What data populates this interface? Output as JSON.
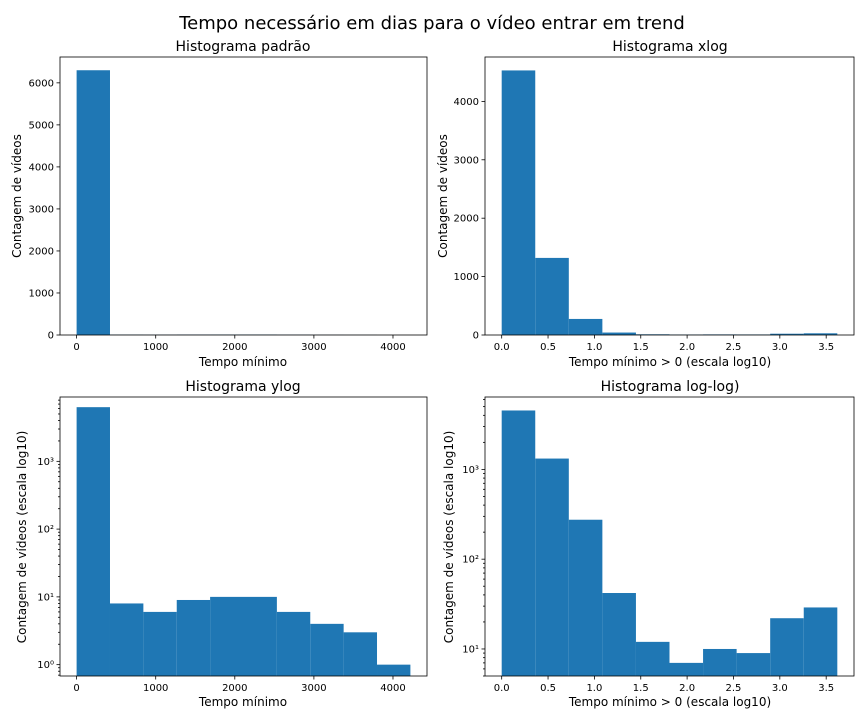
{
  "figure": {
    "title": "Tempo necessário em dias para o vídeo entrar em trend"
  },
  "chart_data": [
    {
      "type": "bar",
      "title": "Histograma padrão",
      "xlabel": "Tempo mínimo",
      "ylabel": "Contagem de vídeos",
      "xscale": "linear",
      "yscale": "linear",
      "xlim": [
        -210,
        4430
      ],
      "ylim": [
        0,
        6615
      ],
      "xticks": [
        0,
        1000,
        2000,
        3000,
        4000
      ],
      "xtick_labels": [
        "0",
        "1000",
        "2000",
        "3000",
        "4000"
      ],
      "yticks": [
        0,
        1000,
        2000,
        3000,
        4000,
        5000,
        6000
      ],
      "ytick_labels": [
        "0",
        "1000",
        "2000",
        "3000",
        "4000",
        "5000",
        "6000"
      ],
      "bin_edges": [
        0,
        422,
        844,
        1266,
        1688,
        2110,
        2532,
        2954,
        3376,
        3798,
        4220
      ],
      "values": [
        6300,
        8,
        6,
        9,
        10,
        10,
        6,
        4,
        3,
        1
      ]
    },
    {
      "type": "bar",
      "title": "Histograma xlog",
      "xlabel": "Tempo mínimo > 0 (escala log10)",
      "ylabel": "Contagem de vídeos",
      "xscale": "linear",
      "yscale": "linear",
      "xlim": [
        -0.18,
        3.8
      ],
      "ylim": [
        0,
        4760
      ],
      "xticks": [
        0.0,
        0.5,
        1.0,
        1.5,
        2.0,
        2.5,
        3.0,
        3.5
      ],
      "xtick_labels": [
        "0.0",
        "0.5",
        "1.0",
        "1.5",
        "2.0",
        "2.5",
        "3.0",
        "3.5"
      ],
      "yticks": [
        0,
        1000,
        2000,
        3000,
        4000
      ],
      "ytick_labels": [
        "0",
        "1000",
        "2000",
        "3000",
        "4000"
      ],
      "bin_edges": [
        0,
        0.362,
        0.724,
        1.086,
        1.448,
        1.81,
        2.172,
        2.534,
        2.896,
        3.258,
        3.62
      ],
      "values": [
        4530,
        1320,
        275,
        42,
        12,
        7,
        10,
        9,
        22,
        29
      ]
    },
    {
      "type": "bar",
      "title": "Histograma ylog",
      "xlabel": "Tempo mínimo",
      "ylabel": "Contagem de vídeos (escala log10)",
      "xscale": "linear",
      "yscale": "log",
      "xlim": [
        -210,
        4430
      ],
      "ylim": [
        0.68,
        8900
      ],
      "xticks": [
        0,
        1000,
        2000,
        3000,
        4000
      ],
      "xtick_labels": [
        "0",
        "1000",
        "2000",
        "3000",
        "4000"
      ],
      "yticks": [
        1,
        10,
        100,
        1000
      ],
      "ytick_labels": [
        "10⁰",
        "10¹",
        "10²",
        "10³"
      ],
      "bin_edges": [
        0,
        422,
        844,
        1266,
        1688,
        2110,
        2532,
        2954,
        3376,
        3798,
        4220
      ],
      "values": [
        6300,
        8,
        6,
        9,
        10,
        10,
        6,
        4,
        3,
        1
      ]
    },
    {
      "type": "bar",
      "title": "Histograma log-log)",
      "xlabel": "Tempo mínimo > 0 (escala log10)",
      "ylabel": "Contagem de vídeos (escala log10)",
      "xscale": "linear",
      "yscale": "log",
      "xlim": [
        -0.18,
        3.8
      ],
      "ylim": [
        5.0,
        6400
      ],
      "xticks": [
        0.0,
        0.5,
        1.0,
        1.5,
        2.0,
        2.5,
        3.0,
        3.5
      ],
      "xtick_labels": [
        "0.0",
        "0.5",
        "1.0",
        "1.5",
        "2.0",
        "2.5",
        "3.0",
        "3.5"
      ],
      "yticks": [
        10,
        100,
        1000
      ],
      "ytick_labels": [
        "10¹",
        "10²",
        "10³"
      ],
      "bin_edges": [
        0,
        0.362,
        0.724,
        1.086,
        1.448,
        1.81,
        2.172,
        2.534,
        2.896,
        3.258,
        3.62
      ],
      "values": [
        4530,
        1320,
        275,
        42,
        12,
        7,
        10,
        9,
        22,
        29
      ]
    }
  ],
  "colors": {
    "bar": "#1f77b4",
    "axes": "#000000",
    "background": "#ffffff"
  }
}
